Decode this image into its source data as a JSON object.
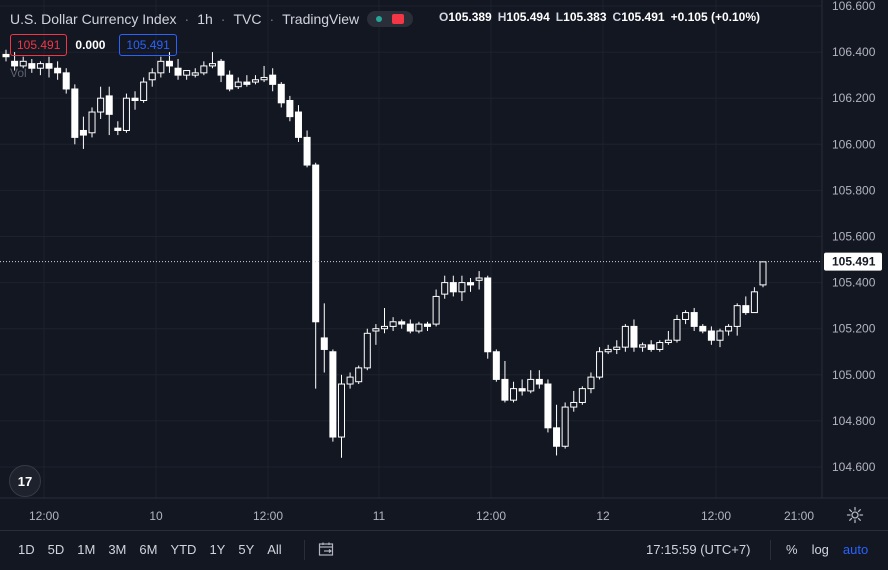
{
  "header": {
    "symbol": "U.S. Dollar Currency Index",
    "interval": "1h",
    "exchange": "TVC",
    "source": "TradingView",
    "open_key": "O",
    "open": "105.389",
    "high_key": "H",
    "high": "105.494",
    "low_key": "L",
    "low": "105.383",
    "close_key": "C",
    "close": "105.491",
    "change": "+0.105 (+0.10%)"
  },
  "badges": {
    "sell": "105.491",
    "spread": "0.000",
    "buy": "105.491"
  },
  "volume_label": "Vol",
  "logo_text": "17",
  "price_label": "105.491",
  "bottom": {
    "periods": [
      "1D",
      "5D",
      "1M",
      "3M",
      "6M",
      "YTD",
      "1Y",
      "5Y",
      "All"
    ],
    "time": "17:15:59 (UTC+7)",
    "percent": "%",
    "log": "log",
    "auto": "auto"
  },
  "colors": {
    "background": "#131722",
    "candle": "#ffffff",
    "grid": "#1e222d",
    "price_line": "#d1d4dc",
    "accent_red": "#f23645",
    "accent_blue": "#2962ff"
  },
  "icons": {
    "calendar": "calendar-range-icon",
    "settings": "gear-icon",
    "logo": "tradingview-logo-icon",
    "toggle": "toggle-icon"
  },
  "chart_data": {
    "type": "candlestick",
    "y_ticks": [
      106.6,
      106.4,
      106.2,
      106.0,
      105.8,
      105.6,
      105.4,
      105.2,
      105.0,
      104.8,
      104.6
    ],
    "y_tick_labels": [
      "106.600",
      "106.400",
      "106.200",
      "106.000",
      "105.800",
      "105.600",
      "105.400",
      "105.200",
      "105.000",
      "104.800",
      "104.600"
    ],
    "ylim": [
      104.5,
      106.6
    ],
    "x_tick_labels": [
      "12:00",
      "10",
      "12:00",
      "11",
      "12:00",
      "12",
      "12:00",
      "21:00"
    ],
    "last_price": 105.491,
    "candles": [
      {
        "o": 106.39,
        "h": 106.41,
        "c": 106.38,
        "l": 106.36
      },
      {
        "o": 106.36,
        "h": 106.4,
        "c": 106.34,
        "l": 106.32
      },
      {
        "o": 106.34,
        "h": 106.38,
        "c": 106.36,
        "l": 106.33
      },
      {
        "o": 106.35,
        "h": 106.37,
        "c": 106.33,
        "l": 106.31
      },
      {
        "o": 106.33,
        "h": 106.36,
        "c": 106.35,
        "l": 106.3
      },
      {
        "o": 106.35,
        "h": 106.38,
        "c": 106.33,
        "l": 106.29
      },
      {
        "o": 106.33,
        "h": 106.36,
        "c": 106.31,
        "l": 106.28
      },
      {
        "o": 106.31,
        "h": 106.33,
        "c": 106.24,
        "l": 106.22
      },
      {
        "o": 106.24,
        "h": 106.26,
        "c": 106.03,
        "l": 106.0
      },
      {
        "o": 106.06,
        "h": 106.12,
        "c": 106.04,
        "l": 105.98
      },
      {
        "o": 106.05,
        "h": 106.16,
        "c": 106.14,
        "l": 106.03
      },
      {
        "o": 106.14,
        "h": 106.25,
        "c": 106.2,
        "l": 106.11
      },
      {
        "o": 106.21,
        "h": 106.25,
        "c": 106.13,
        "l": 106.04
      },
      {
        "o": 106.07,
        "h": 106.1,
        "c": 106.06,
        "l": 106.04
      },
      {
        "o": 106.06,
        "h": 106.22,
        "c": 106.2,
        "l": 106.05
      },
      {
        "o": 106.2,
        "h": 106.23,
        "c": 106.19,
        "l": 106.15
      },
      {
        "o": 106.19,
        "h": 106.29,
        "c": 106.27,
        "l": 106.18
      },
      {
        "o": 106.28,
        "h": 106.33,
        "c": 106.31,
        "l": 106.25
      },
      {
        "o": 106.31,
        "h": 106.38,
        "c": 106.36,
        "l": 106.29
      },
      {
        "o": 106.36,
        "h": 106.4,
        "c": 106.34,
        "l": 106.31
      },
      {
        "o": 106.33,
        "h": 106.37,
        "c": 106.3,
        "l": 106.28
      },
      {
        "o": 106.3,
        "h": 106.31,
        "c": 106.32,
        "l": 106.28
      },
      {
        "o": 106.3,
        "h": 106.33,
        "c": 106.31,
        "l": 106.29
      },
      {
        "o": 106.31,
        "h": 106.36,
        "c": 106.34,
        "l": 106.3
      },
      {
        "o": 106.34,
        "h": 106.4,
        "c": 106.35,
        "l": 106.33
      },
      {
        "o": 106.36,
        "h": 106.37,
        "c": 106.3,
        "l": 106.27
      },
      {
        "o": 106.3,
        "h": 106.32,
        "c": 106.24,
        "l": 106.23
      },
      {
        "o": 106.25,
        "h": 106.29,
        "c": 106.27,
        "l": 106.24
      },
      {
        "o": 106.27,
        "h": 106.3,
        "c": 106.26,
        "l": 106.25
      },
      {
        "o": 106.27,
        "h": 106.3,
        "c": 106.28,
        "l": 106.26
      },
      {
        "o": 106.28,
        "h": 106.34,
        "c": 106.29,
        "l": 106.27
      },
      {
        "o": 106.3,
        "h": 106.33,
        "c": 106.26,
        "l": 106.23
      },
      {
        "o": 106.26,
        "h": 106.27,
        "c": 106.18,
        "l": 106.16
      },
      {
        "o": 106.19,
        "h": 106.21,
        "c": 106.12,
        "l": 106.1
      },
      {
        "o": 106.14,
        "h": 106.17,
        "c": 106.03,
        "l": 106.01
      },
      {
        "o": 106.03,
        "h": 106.06,
        "c": 105.91,
        "l": 105.9
      },
      {
        "o": 105.91,
        "h": 105.92,
        "c": 105.23,
        "l": 104.94
      },
      {
        "o": 105.16,
        "h": 105.31,
        "c": 105.11,
        "l": 105.01
      },
      {
        "o": 105.1,
        "h": 105.11,
        "c": 104.73,
        "l": 104.71
      },
      {
        "o": 104.73,
        "h": 105.0,
        "c": 104.96,
        "l": 104.64
      },
      {
        "o": 104.96,
        "h": 105.01,
        "c": 104.99,
        "l": 104.94
      },
      {
        "o": 104.97,
        "h": 105.04,
        "c": 105.03,
        "l": 104.96
      },
      {
        "o": 105.03,
        "h": 105.2,
        "c": 105.18,
        "l": 105.02
      },
      {
        "o": 105.19,
        "h": 105.22,
        "c": 105.2,
        "l": 105.13
      },
      {
        "o": 105.2,
        "h": 105.29,
        "c": 105.21,
        "l": 105.18
      },
      {
        "o": 105.21,
        "h": 105.25,
        "c": 105.23,
        "l": 105.19
      },
      {
        "o": 105.23,
        "h": 105.24,
        "c": 105.22,
        "l": 105.2
      },
      {
        "o": 105.22,
        "h": 105.24,
        "c": 105.19,
        "l": 105.18
      },
      {
        "o": 105.19,
        "h": 105.23,
        "c": 105.22,
        "l": 105.18
      },
      {
        "o": 105.22,
        "h": 105.23,
        "c": 105.21,
        "l": 105.19
      },
      {
        "o": 105.22,
        "h": 105.37,
        "c": 105.34,
        "l": 105.21
      },
      {
        "o": 105.35,
        "h": 105.43,
        "c": 105.4,
        "l": 105.33
      },
      {
        "o": 105.4,
        "h": 105.43,
        "c": 105.36,
        "l": 105.34
      },
      {
        "o": 105.36,
        "h": 105.43,
        "c": 105.4,
        "l": 105.32
      },
      {
        "o": 105.4,
        "h": 105.42,
        "c": 105.39,
        "l": 105.36
      },
      {
        "o": 105.41,
        "h": 105.45,
        "c": 105.42,
        "l": 105.37
      },
      {
        "o": 105.42,
        "h": 105.43,
        "c": 105.1,
        "l": 105.07
      },
      {
        "o": 105.1,
        "h": 105.11,
        "c": 104.98,
        "l": 104.97
      },
      {
        "o": 104.98,
        "h": 105.06,
        "c": 104.89,
        "l": 104.88
      },
      {
        "o": 104.89,
        "h": 104.97,
        "c": 104.94,
        "l": 104.88
      },
      {
        "o": 104.94,
        "h": 104.98,
        "c": 104.93,
        "l": 104.91
      },
      {
        "o": 104.93,
        "h": 105.02,
        "c": 104.98,
        "l": 104.92
      },
      {
        "o": 104.98,
        "h": 105.02,
        "c": 104.96,
        "l": 104.94
      },
      {
        "o": 104.96,
        "h": 104.98,
        "c": 104.77,
        "l": 104.75
      },
      {
        "o": 104.77,
        "h": 104.87,
        "c": 104.69,
        "l": 104.65
      },
      {
        "o": 104.69,
        "h": 104.88,
        "c": 104.86,
        "l": 104.68
      },
      {
        "o": 104.86,
        "h": 104.93,
        "c": 104.88,
        "l": 104.84
      },
      {
        "o": 104.88,
        "h": 104.95,
        "c": 104.94,
        "l": 104.87
      },
      {
        "o": 104.94,
        "h": 105.01,
        "c": 104.99,
        "l": 104.92
      },
      {
        "o": 104.99,
        "h": 105.12,
        "c": 105.1,
        "l": 104.98
      },
      {
        "o": 105.1,
        "h": 105.13,
        "c": 105.11,
        "l": 105.09
      },
      {
        "o": 105.11,
        "h": 105.15,
        "c": 105.12,
        "l": 105.09
      },
      {
        "o": 105.12,
        "h": 105.22,
        "c": 105.21,
        "l": 105.1
      },
      {
        "o": 105.21,
        "h": 105.24,
        "c": 105.12,
        "l": 105.1
      },
      {
        "o": 105.12,
        "h": 105.14,
        "c": 105.13,
        "l": 105.1
      },
      {
        "o": 105.13,
        "h": 105.15,
        "c": 105.11,
        "l": 105.1
      },
      {
        "o": 105.11,
        "h": 105.15,
        "c": 105.14,
        "l": 105.1
      },
      {
        "o": 105.14,
        "h": 105.19,
        "c": 105.15,
        "l": 105.13
      },
      {
        "o": 105.15,
        "h": 105.26,
        "c": 105.24,
        "l": 105.14
      },
      {
        "o": 105.24,
        "h": 105.28,
        "c": 105.27,
        "l": 105.22
      },
      {
        "o": 105.27,
        "h": 105.29,
        "c": 105.21,
        "l": 105.19
      },
      {
        "o": 105.21,
        "h": 105.22,
        "c": 105.19,
        "l": 105.18
      },
      {
        "o": 105.19,
        "h": 105.21,
        "c": 105.15,
        "l": 105.13
      },
      {
        "o": 105.15,
        "h": 105.2,
        "c": 105.19,
        "l": 105.12
      },
      {
        "o": 105.19,
        "h": 105.22,
        "c": 105.21,
        "l": 105.17
      },
      {
        "o": 105.21,
        "h": 105.31,
        "c": 105.3,
        "l": 105.17
      },
      {
        "o": 105.3,
        "h": 105.34,
        "c": 105.27,
        "l": 105.26
      },
      {
        "o": 105.27,
        "h": 105.38,
        "c": 105.36,
        "l": 105.28
      },
      {
        "o": 105.39,
        "h": 105.49,
        "c": 105.49,
        "l": 105.38
      }
    ]
  }
}
